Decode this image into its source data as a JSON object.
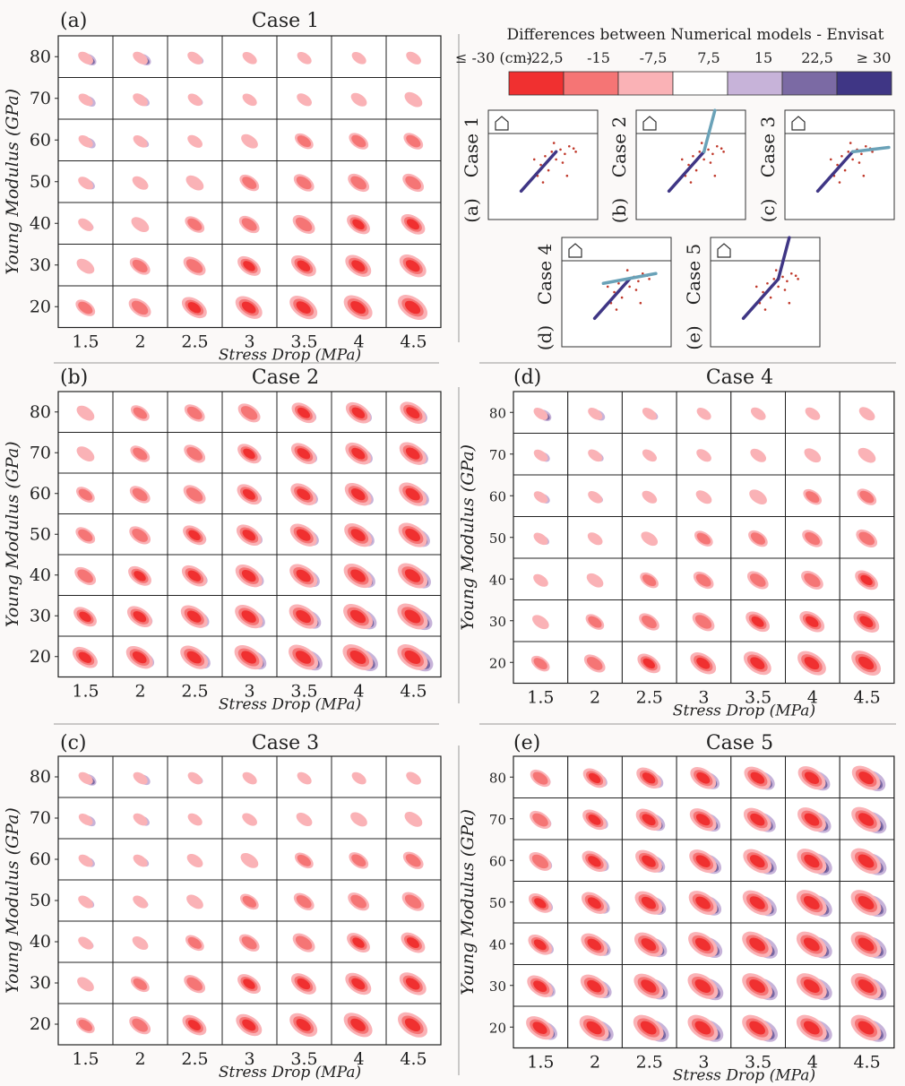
{
  "colors": {
    "scale": [
      "#f03030",
      "#f57575",
      "#fab2b6",
      "#ffffff",
      "#c7b3d9",
      "#7b6aa4",
      "#3f3685"
    ],
    "background": "#fbf9f8",
    "fault_dark": "#3f3685",
    "fault_light": "#6aa2b8",
    "points": "#c0392b"
  },
  "legend": {
    "title": "Differences between  Numerical models - Envisat",
    "labels": [
      "≤ -30 (cm)",
      "-22,5",
      "-15",
      "-7,5",
      "7,5",
      "15",
      "22,5",
      "≥ 30"
    ]
  },
  "chart_data": [
    {
      "type": "heatmap",
      "panel": "(a)",
      "title": "Case 1",
      "xlabel": "Stress Drop (MPa)",
      "ylabel": "Young Modulus (GPa)",
      "x": [
        "1.5",
        "2",
        "2.5",
        "3",
        "3.5",
        "4",
        "4.5"
      ],
      "y": [
        "80",
        "70",
        "60",
        "50",
        "40",
        "30",
        "20"
      ],
      "shade_scale": [
        -30,
        30
      ],
      "neg_intensity": [
        [
          0.15,
          0.15,
          0.15,
          0.12,
          0.12,
          0.12,
          0.15
        ],
        [
          0.12,
          0.15,
          0.12,
          0.12,
          0.15,
          0.2,
          0.3
        ],
        [
          0.12,
          0.12,
          0.15,
          0.25,
          0.35,
          0.4,
          0.4
        ],
        [
          0.15,
          0.2,
          0.3,
          0.4,
          0.45,
          0.5,
          0.5
        ],
        [
          0.15,
          0.3,
          0.4,
          0.45,
          0.55,
          0.6,
          0.65
        ],
        [
          0.3,
          0.45,
          0.55,
          0.6,
          0.7,
          0.75,
          0.8
        ],
        [
          0.4,
          0.55,
          0.7,
          0.8,
          0.85,
          0.9,
          0.95
        ]
      ],
      "pos_intensity": [
        [
          0.5,
          0.5,
          0.35,
          0.2,
          0.15,
          0.1,
          0.05
        ],
        [
          0.45,
          0.4,
          0.3,
          0.2,
          0.15,
          0.1,
          0
        ],
        [
          0.45,
          0.35,
          0.25,
          0.15,
          0.1,
          0,
          0
        ],
        [
          0.4,
          0.3,
          0.2,
          0.1,
          0,
          0,
          0
        ],
        [
          0.3,
          0.2,
          0.15,
          0.1,
          0,
          0,
          0
        ],
        [
          0.15,
          0.1,
          0,
          0,
          0,
          0,
          0.1
        ],
        [
          0,
          0,
          0,
          0,
          0,
          0.15,
          0.3
        ]
      ]
    },
    {
      "type": "heatmap",
      "panel": "(b)",
      "title": "Case 2",
      "xlabel": "Stress Drop (MPa)",
      "ylabel": "Young Modulus (GPa)",
      "x": [
        "1.5",
        "2",
        "2.5",
        "3",
        "3.5",
        "4",
        "4.5"
      ],
      "y": [
        "80",
        "70",
        "60",
        "50",
        "40",
        "30",
        "20"
      ],
      "shade_scale": [
        -30,
        30
      ],
      "neg_intensity": [
        [
          0.3,
          0.35,
          0.45,
          0.55,
          0.65,
          0.7,
          0.75
        ],
        [
          0.3,
          0.4,
          0.5,
          0.6,
          0.7,
          0.75,
          0.8
        ],
        [
          0.35,
          0.45,
          0.55,
          0.65,
          0.75,
          0.8,
          0.85
        ],
        [
          0.4,
          0.5,
          0.6,
          0.7,
          0.8,
          0.85,
          0.9
        ],
        [
          0.5,
          0.6,
          0.7,
          0.8,
          0.85,
          0.9,
          0.95
        ],
        [
          0.6,
          0.7,
          0.8,
          0.85,
          0.9,
          0.95,
          1
        ],
        [
          0.7,
          0.8,
          0.85,
          0.9,
          0.95,
          1,
          1
        ]
      ],
      "pos_intensity": [
        [
          0.3,
          0.25,
          0.3,
          0.4,
          0.5,
          0.55,
          0.6
        ],
        [
          0.2,
          0.25,
          0.4,
          0.5,
          0.55,
          0.6,
          0.65
        ],
        [
          0.15,
          0.25,
          0.4,
          0.5,
          0.6,
          0.65,
          0.7
        ],
        [
          0.15,
          0.3,
          0.45,
          0.55,
          0.65,
          0.7,
          0.75
        ],
        [
          0.2,
          0.35,
          0.5,
          0.6,
          0.7,
          0.75,
          0.8
        ],
        [
          0.3,
          0.45,
          0.6,
          0.7,
          0.8,
          0.85,
          0.9
        ],
        [
          0.4,
          0.55,
          0.7,
          0.8,
          0.9,
          0.95,
          1
        ]
      ]
    },
    {
      "type": "heatmap",
      "panel": "(c)",
      "title": "Case 3",
      "xlabel": "Stress Drop (MPa)",
      "ylabel": "Young Modulus (GPa)",
      "x": [
        "1.5",
        "2",
        "2.5",
        "3",
        "3.5",
        "4",
        "4.5"
      ],
      "y": [
        "80",
        "70",
        "60",
        "50",
        "40",
        "30",
        "20"
      ],
      "shade_scale": [
        -30,
        30
      ],
      "neg_intensity": [
        [
          0.12,
          0.12,
          0.12,
          0.12,
          0.12,
          0.12,
          0.15
        ],
        [
          0.1,
          0.12,
          0.12,
          0.15,
          0.2,
          0.25,
          0.3
        ],
        [
          0.12,
          0.12,
          0.2,
          0.3,
          0.35,
          0.4,
          0.45
        ],
        [
          0.15,
          0.15,
          0.25,
          0.35,
          0.45,
          0.5,
          0.55
        ],
        [
          0.15,
          0.2,
          0.35,
          0.45,
          0.55,
          0.6,
          0.65
        ],
        [
          0.25,
          0.35,
          0.5,
          0.6,
          0.7,
          0.75,
          0.8
        ],
        [
          0.35,
          0.5,
          0.65,
          0.75,
          0.85,
          0.9,
          0.95
        ]
      ],
      "pos_intensity": [
        [
          0.5,
          0.45,
          0.3,
          0.15,
          0.1,
          0.1,
          0
        ],
        [
          0.45,
          0.4,
          0.25,
          0.15,
          0.1,
          0.1,
          0
        ],
        [
          0.4,
          0.35,
          0.2,
          0.15,
          0.1,
          0,
          0
        ],
        [
          0.35,
          0.3,
          0.15,
          0.1,
          0,
          0,
          0
        ],
        [
          0.3,
          0.2,
          0.1,
          0,
          0,
          0,
          0
        ],
        [
          0.15,
          0.1,
          0,
          0,
          0,
          0,
          0
        ],
        [
          0,
          0,
          0,
          0,
          0,
          0.1,
          0.15
        ]
      ]
    },
    {
      "type": "heatmap",
      "panel": "(d)",
      "title": "Case 4",
      "xlabel": "Stress Drop (MPa)",
      "ylabel": "Young Modulus (GPa)",
      "x": [
        "1.5",
        "2",
        "2.5",
        "3",
        "3.5",
        "4",
        "4.5"
      ],
      "y": [
        "80",
        "70",
        "60",
        "50",
        "40",
        "30",
        "20"
      ],
      "shade_scale": [
        -30,
        30
      ],
      "neg_intensity": [
        [
          0.12,
          0.12,
          0.12,
          0.12,
          0.15,
          0.15,
          0.2
        ],
        [
          0.1,
          0.12,
          0.12,
          0.15,
          0.2,
          0.25,
          0.3
        ],
        [
          0.1,
          0.12,
          0.15,
          0.2,
          0.3,
          0.35,
          0.4
        ],
        [
          0.12,
          0.15,
          0.25,
          0.35,
          0.4,
          0.45,
          0.5
        ],
        [
          0.15,
          0.25,
          0.35,
          0.45,
          0.5,
          0.55,
          0.6
        ],
        [
          0.25,
          0.35,
          0.45,
          0.55,
          0.65,
          0.7,
          0.75
        ],
        [
          0.35,
          0.5,
          0.6,
          0.75,
          0.85,
          0.9,
          0.95
        ]
      ],
      "pos_intensity": [
        [
          0.5,
          0.45,
          0.35,
          0.2,
          0.2,
          0.15,
          0.1
        ],
        [
          0.4,
          0.35,
          0.25,
          0.15,
          0.1,
          0.1,
          0
        ],
        [
          0.4,
          0.3,
          0.2,
          0.1,
          0,
          0,
          0
        ],
        [
          0.35,
          0.25,
          0.15,
          0.1,
          0,
          0,
          0
        ],
        [
          0.25,
          0.2,
          0.1,
          0,
          0,
          0,
          0
        ],
        [
          0.1,
          0,
          0,
          0,
          0,
          0,
          0.1
        ],
        [
          0,
          0,
          0,
          0,
          0,
          0.1,
          0.3
        ]
      ]
    },
    {
      "type": "heatmap",
      "panel": "(e)",
      "title": "Case 5",
      "xlabel": "Stress Drop (MPa)",
      "ylabel": "Young Modulus (GPa)",
      "x": [
        "1.5",
        "2",
        "2.5",
        "3",
        "3.5",
        "4",
        "4.5"
      ],
      "y": [
        "80",
        "70",
        "60",
        "50",
        "40",
        "30",
        "20"
      ],
      "shade_scale": [
        -30,
        30
      ],
      "neg_intensity": [
        [
          0.45,
          0.6,
          0.7,
          0.75,
          0.8,
          0.85,
          0.9
        ],
        [
          0.5,
          0.65,
          0.75,
          0.8,
          0.85,
          0.9,
          0.95
        ],
        [
          0.55,
          0.7,
          0.8,
          0.85,
          0.9,
          0.95,
          1
        ],
        [
          0.6,
          0.75,
          0.85,
          0.9,
          0.95,
          1,
          1
        ],
        [
          0.65,
          0.8,
          0.9,
          0.95,
          1,
          1,
          1
        ],
        [
          0.75,
          0.85,
          0.95,
          1,
          1,
          1,
          1
        ],
        [
          0.85,
          0.95,
          1,
          1,
          1,
          1,
          1
        ]
      ],
      "pos_intensity": [
        [
          0.45,
          0.6,
          0.7,
          0.8,
          0.85,
          0.9,
          0.95
        ],
        [
          0.5,
          0.65,
          0.8,
          0.85,
          0.9,
          0.95,
          1
        ],
        [
          0.55,
          0.7,
          0.8,
          0.9,
          0.95,
          1,
          1
        ],
        [
          0.6,
          0.75,
          0.85,
          0.9,
          0.95,
          1,
          1
        ],
        [
          0.65,
          0.8,
          0.9,
          0.95,
          1,
          1,
          1
        ],
        [
          0.75,
          0.85,
          0.95,
          1,
          1,
          1,
          1
        ],
        [
          0.85,
          0.95,
          1,
          1,
          1,
          1,
          1
        ]
      ]
    }
  ],
  "case_diagrams": [
    {
      "panel": "(a)",
      "label": "Case 1",
      "extension": "none"
    },
    {
      "panel": "(b)",
      "label": "Case 2",
      "extension": "steep"
    },
    {
      "panel": "(c)",
      "label": "Case 3",
      "extension": "flat"
    },
    {
      "panel": "(d)",
      "label": "Case 4",
      "extension": "shallow"
    },
    {
      "panel": "(e)",
      "label": "Case 5",
      "extension": "steep-dark"
    }
  ]
}
